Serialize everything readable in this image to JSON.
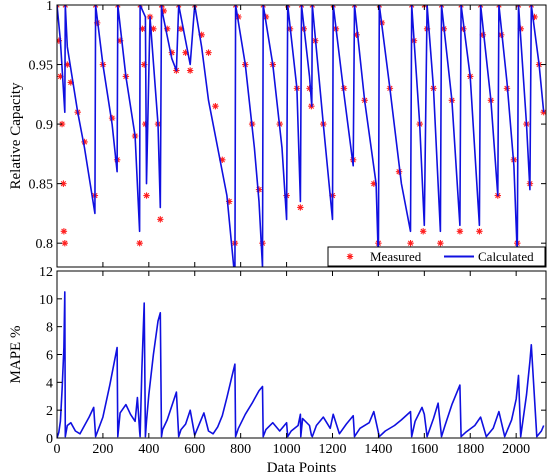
{
  "chart_data": [
    {
      "type": "line",
      "ylabel": "Relative Capacity",
      "xlim": [
        0,
        2130
      ],
      "ylim": [
        0.78,
        1.0
      ],
      "yticks": [
        0.8,
        0.85,
        0.9,
        0.95,
        1
      ],
      "ytick_labels": [
        "0.8",
        "0.85",
        "0.9",
        "0.95",
        "1"
      ],
      "grid": false,
      "legend_position": "bottom-right",
      "series": [
        {
          "name": "Measured",
          "style": "markers-asterisk",
          "color": "#ff2020",
          "x": [
            0,
            8,
            15,
            22,
            28,
            30,
            34,
            36,
            45,
            60,
            90,
            120,
            165,
            168,
            175,
            200,
            240,
            262,
            265,
            275,
            300,
            340,
            360,
            362,
            372,
            380,
            385,
            390,
            405,
            420,
            440,
            450,
            455,
            458,
            465,
            480,
            500,
            520,
            530,
            540,
            560,
            580,
            600,
            630,
            660,
            690,
            720,
            750,
            775,
            778,
            790,
            820,
            850,
            880,
            895,
            898,
            910,
            940,
            970,
            1000,
            1005,
            1015,
            1045,
            1060,
            1065,
            1075,
            1100,
            1108,
            1112,
            1125,
            1160,
            1200,
            1203,
            1215,
            1250,
            1290,
            1296,
            1305,
            1340,
            1380,
            1400,
            1404,
            1415,
            1450,
            1490,
            1540,
            1545,
            1555,
            1580,
            1595,
            1600,
            1612,
            1640,
            1670,
            1675,
            1685,
            1720,
            1755,
            1760,
            1770,
            1800,
            1840,
            1845,
            1855,
            1890,
            1920,
            1925,
            1935,
            1960,
            1990,
            2005,
            2010,
            2020,
            2045,
            2060,
            2066,
            2080,
            2100,
            2120
          ],
          "y": [
            1.0,
            0.97,
            0.94,
            0.9,
            0.85,
            0.81,
            0.8,
            1.0,
            0.95,
            0.935,
            0.91,
            0.885,
            0.84,
            1.0,
            0.985,
            0.95,
            0.905,
            0.87,
            1.0,
            0.97,
            0.94,
            0.89,
            0.8,
            1.0,
            0.98,
            0.95,
            0.9,
            0.84,
            0.99,
            0.98,
            0.9,
            0.82,
            1.0,
            1.0,
            0.995,
            0.98,
            0.96,
            0.945,
            1.0,
            0.98,
            0.96,
            0.945,
            1.0,
            0.975,
            0.96,
            0.915,
            0.87,
            0.835,
            0.8,
            1.0,
            0.99,
            0.95,
            0.9,
            0.845,
            0.8,
            1.0,
            0.99,
            0.95,
            0.9,
            0.84,
            1.0,
            0.98,
            0.93,
            0.83,
            1.0,
            0.98,
            0.93,
            0.915,
            1.0,
            0.97,
            0.9,
            0.84,
            1.0,
            0.98,
            0.93,
            0.87,
            1.0,
            0.975,
            0.92,
            0.85,
            0.8,
            1.0,
            0.985,
            0.93,
            0.86,
            0.8,
            1.0,
            0.97,
            0.9,
            0.81,
            1.0,
            0.98,
            0.93,
            0.8,
            1.0,
            0.98,
            0.92,
            0.81,
            1.0,
            0.98,
            0.94,
            0.81,
            1.0,
            0.975,
            0.92,
            0.84,
            1.0,
            0.975,
            0.93,
            0.87,
            0.8,
            1.0,
            0.98,
            0.9,
            0.85,
            1.0,
            0.99,
            0.95,
            0.91
          ]
        },
        {
          "name": "Calculated",
          "style": "line",
          "color": "#1010e0",
          "x": [
            0,
            15,
            34,
            36,
            45,
            90,
            120,
            165,
            168,
            200,
            240,
            262,
            265,
            300,
            340,
            360,
            362,
            385,
            390,
            405,
            440,
            450,
            455,
            458,
            500,
            520,
            530,
            580,
            600,
            630,
            660,
            700,
            740,
            775,
            778,
            820,
            860,
            880,
            895,
            898,
            940,
            980,
            1000,
            1005,
            1045,
            1060,
            1065,
            1100,
            1110,
            1112,
            1160,
            1200,
            1203,
            1250,
            1290,
            1296,
            1340,
            1390,
            1400,
            1404,
            1450,
            1500,
            1540,
            1545,
            1580,
            1600,
            1612,
            1640,
            1670,
            1675,
            1720,
            1755,
            1760,
            1800,
            1840,
            1845,
            1890,
            1920,
            1925,
            1960,
            1990,
            2005,
            2010,
            2045,
            2060,
            2066,
            2100,
            2120
          ],
          "y": [
            1.0,
            0.97,
            0.91,
            1.0,
            0.965,
            0.91,
            0.88,
            0.825,
            1.0,
            0.95,
            0.9,
            0.86,
            1.0,
            0.94,
            0.89,
            0.81,
            1.0,
            0.99,
            0.85,
            0.99,
            0.9,
            0.83,
            1.0,
            0.995,
            0.955,
            0.945,
            1.0,
            0.95,
            1.0,
            0.965,
            0.92,
            0.88,
            0.84,
            0.77,
            1.0,
            0.95,
            0.88,
            0.835,
            0.78,
            1.0,
            0.95,
            0.88,
            0.82,
            1.0,
            0.93,
            0.835,
            1.0,
            0.94,
            0.915,
            1.0,
            0.9,
            0.82,
            1.0,
            0.925,
            0.865,
            1.0,
            0.92,
            0.85,
            0.785,
            1.0,
            0.93,
            0.85,
            0.81,
            1.0,
            0.9,
            0.815,
            1.0,
            0.93,
            0.81,
            1.0,
            0.92,
            0.815,
            1.0,
            0.94,
            0.815,
            1.0,
            0.92,
            0.84,
            1.0,
            0.935,
            0.865,
            0.79,
            1.0,
            0.9,
            0.845,
            1.0,
            0.95,
            0.91
          ]
        }
      ]
    },
    {
      "type": "line",
      "xlabel": "Data Points",
      "ylabel": "MAPE %",
      "xlim": [
        0,
        2130
      ],
      "ylim": [
        0,
        12
      ],
      "xticks": [
        0,
        200,
        400,
        600,
        800,
        1000,
        1200,
        1400,
        1600,
        1800,
        2000
      ],
      "xtick_labels": [
        "0",
        "200",
        "400",
        "600",
        "800",
        "1000",
        "1200",
        "1400",
        "1600",
        "1800",
        "2000"
      ],
      "yticks": [
        0,
        2,
        4,
        6,
        8,
        10,
        12
      ],
      "ytick_labels": [
        "0",
        "2",
        "4",
        "6",
        "8",
        "10",
        "12"
      ],
      "grid": false,
      "series": [
        {
          "style": "line",
          "color": "#1010e0",
          "x": [
            0,
            8,
            15,
            22,
            30,
            34,
            36,
            45,
            60,
            80,
            100,
            120,
            140,
            160,
            168,
            175,
            200,
            230,
            262,
            265,
            275,
            300,
            320,
            340,
            350,
            360,
            362,
            370,
            380,
            385,
            390,
            400,
            420,
            440,
            450,
            455,
            460,
            480,
            500,
            520,
            530,
            540,
            560,
            580,
            600,
            620,
            640,
            660,
            680,
            700,
            720,
            740,
            760,
            775,
            778,
            790,
            820,
            850,
            880,
            895,
            898,
            910,
            940,
            970,
            1000,
            1005,
            1020,
            1050,
            1060,
            1062,
            1070,
            1100,
            1108,
            1112,
            1130,
            1160,
            1190,
            1203,
            1230,
            1260,
            1290,
            1296,
            1320,
            1360,
            1380,
            1404,
            1430,
            1470,
            1500,
            1540,
            1545,
            1560,
            1590,
            1600,
            1612,
            1640,
            1660,
            1675,
            1690,
            1720,
            1755,
            1760,
            1780,
            1820,
            1845,
            1870,
            1900,
            1925,
            1950,
            1980,
            2000,
            2010,
            2020,
            2045,
            2060,
            2066,
            2090,
            2110,
            2120
          ],
          "y": [
            0,
            0.4,
            1.2,
            3.5,
            6.5,
            10.5,
            0.1,
            0.9,
            1.1,
            0.5,
            0.3,
            0.9,
            1.5,
            2.2,
            0.1,
            0.4,
            1.5,
            3.8,
            6.5,
            0.1,
            1.8,
            2.4,
            1.7,
            1.2,
            2.9,
            0.5,
            0.1,
            5.0,
            9.7,
            0.1,
            1.2,
            3.1,
            6.0,
            8.4,
            9.0,
            0.1,
            0.6,
            1.3,
            2.3,
            3.3,
            0.1,
            0.6,
            1.0,
            2.0,
            0.2,
            1.0,
            1.8,
            0.5,
            0.3,
            0.8,
            1.6,
            2.9,
            4.3,
            5.3,
            0.1,
            0.7,
            1.7,
            2.5,
            3.4,
            3.7,
            0.1,
            0.6,
            1.1,
            0.5,
            1.1,
            0.1,
            0.5,
            0.9,
            1.7,
            0.1,
            1.4,
            0.9,
            0.2,
            0.1,
            0.9,
            1.5,
            0.7,
            1.7,
            0.3,
            1.0,
            1.6,
            0.1,
            0.7,
            1.1,
            1.9,
            0.1,
            0.5,
            0.9,
            1.3,
            1.9,
            0.1,
            1.2,
            2.2,
            1.7,
            0.1,
            1.4,
            2.5,
            0.1,
            0.9,
            2.4,
            3.8,
            0.1,
            0.4,
            0.9,
            1.5,
            0.1,
            0.7,
            1.9,
            0.1,
            1.3,
            2.8,
            4.5,
            0.1,
            3.1,
            5.5,
            6.7,
            0.1,
            0.5,
            0.9
          ]
        }
      ]
    }
  ]
}
